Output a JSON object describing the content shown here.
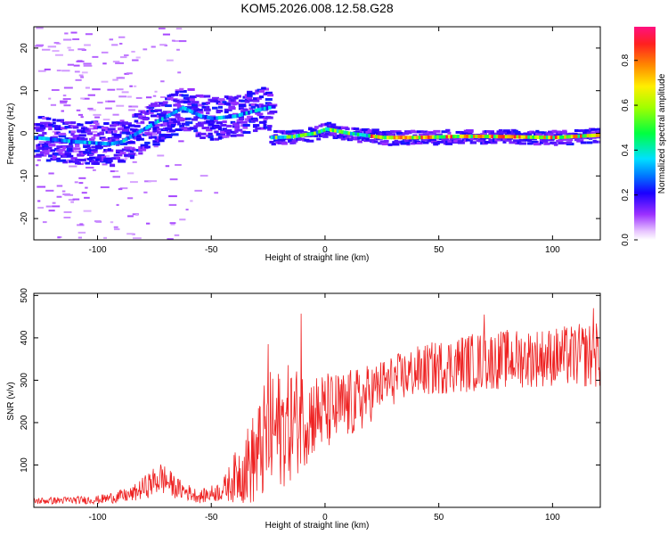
{
  "figure_title": "KOM5.2026.008.12.58.G28",
  "colors": {
    "frame": "#000000",
    "snr_line": "#ee2222",
    "background": "#ffffff"
  },
  "chart_data": [
    {
      "type": "heatmap",
      "xlabel": "Height of straight line (km)",
      "ylabel": "Frequency (Hz)",
      "xlim": [
        -128,
        121
      ],
      "ylim": [
        -25,
        25
      ],
      "x_ticks": [
        -100,
        -50,
        0,
        50,
        100
      ],
      "x_tick_labels": [
        "-100",
        "-50",
        "0",
        "50",
        "100"
      ],
      "y_ticks": [
        -20,
        -10,
        0,
        10,
        20
      ],
      "y_tick_labels": [
        "-20",
        "-10",
        "0",
        "10",
        "20"
      ],
      "colorbar": {
        "label": "Normalized spectral amplitude",
        "range": [
          0,
          0.95
        ],
        "ticks": [
          0.0,
          0.2,
          0.4,
          0.6,
          0.8
        ],
        "tick_labels": [
          "0.0",
          "0.2",
          "0.4",
          "0.6",
          "0.8"
        ],
        "colormap": "rainbow"
      },
      "ridge": [
        {
          "x": -128,
          "y": -1
        },
        {
          "x": -110,
          "y": -2
        },
        {
          "x": -95,
          "y": -2.5
        },
        {
          "x": -90,
          "y": -2
        },
        {
          "x": -80,
          "y": 1
        },
        {
          "x": -70,
          "y": 4
        },
        {
          "x": -63,
          "y": 6
        },
        {
          "x": -55,
          "y": 4
        },
        {
          "x": -50,
          "y": 3.5
        },
        {
          "x": -40,
          "y": 4
        },
        {
          "x": -30,
          "y": 5.5
        },
        {
          "x": -25,
          "y": 6
        },
        {
          "x": -24,
          "y": -1
        },
        {
          "x": -15,
          "y": -0.8
        },
        {
          "x": -5,
          "y": 0
        },
        {
          "x": 0,
          "y": 1
        },
        {
          "x": 10,
          "y": 0
        },
        {
          "x": 25,
          "y": -1
        },
        {
          "x": 40,
          "y": -1
        },
        {
          "x": 60,
          "y": -0.7
        },
        {
          "x": 80,
          "y": -0.8
        },
        {
          "x": 100,
          "y": -1
        },
        {
          "x": 121,
          "y": -0.4
        }
      ]
    },
    {
      "type": "line",
      "xlabel": "Height of straight line (km)",
      "ylabel": "SNR (v/v)",
      "xlim": [
        -128,
        121
      ],
      "ylim": [
        0,
        505
      ],
      "x_ticks": [
        -100,
        -50,
        0,
        50,
        100
      ],
      "x_tick_labels": [
        "-100",
        "-50",
        "0",
        "50",
        "100"
      ],
      "y_ticks": [
        100,
        200,
        300,
        400,
        500
      ],
      "y_tick_labels": [
        "100",
        "200",
        "300",
        "400",
        "500"
      ],
      "series": [
        {
          "name": "SNR",
          "color": "#ee2222",
          "envelope": [
            {
              "x": -128,
              "base": 15,
              "amp": 8
            },
            {
              "x": -100,
              "base": 18,
              "amp": 10
            },
            {
              "x": -85,
              "base": 30,
              "amp": 18
            },
            {
              "x": -72,
              "base": 70,
              "amp": 40
            },
            {
              "x": -65,
              "base": 45,
              "amp": 25
            },
            {
              "x": -55,
              "base": 25,
              "amp": 15
            },
            {
              "x": -45,
              "base": 40,
              "amp": 25
            },
            {
              "x": -38,
              "base": 80,
              "amp": 70
            },
            {
              "x": -30,
              "base": 120,
              "amp": 120
            },
            {
              "x": -25,
              "base": 170,
              "amp": 150
            },
            {
              "x": -15,
              "base": 200,
              "amp": 140
            },
            {
              "x": -5,
              "base": 220,
              "amp": 100
            },
            {
              "x": 5,
              "base": 230,
              "amp": 90
            },
            {
              "x": 15,
              "base": 250,
              "amp": 80
            },
            {
              "x": 25,
              "base": 290,
              "amp": 60
            },
            {
              "x": 40,
              "base": 320,
              "amp": 60
            },
            {
              "x": 60,
              "base": 340,
              "amp": 70
            },
            {
              "x": 80,
              "base": 350,
              "amp": 70
            },
            {
              "x": 100,
              "base": 355,
              "amp": 70
            },
            {
              "x": 121,
              "base": 360,
              "amp": 80
            }
          ],
          "peaks": [
            {
              "x": -10.5,
              "y": 457
            },
            {
              "x": -25,
              "y": 385
            },
            {
              "x": 118,
              "y": 470
            },
            {
              "x": 70,
              "y": 455
            }
          ]
        }
      ]
    }
  ]
}
